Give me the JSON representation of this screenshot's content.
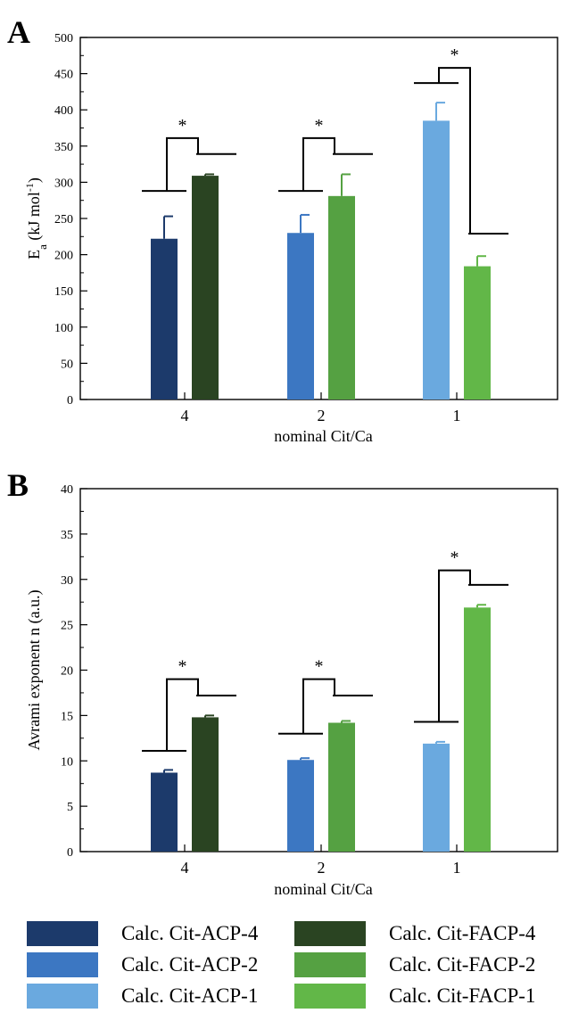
{
  "panels": [
    {
      "letter": "A",
      "ylabel": "E",
      "ylabel_sub": "a",
      "ylabel_rest": " (kJ mol",
      "ylabel_sup": "-1",
      "ylabel_end": ")",
      "xlabel": "nominal Cit/Ca"
    },
    {
      "letter": "B",
      "ylabel": "Avrami exponent n  (a.u.)",
      "xlabel": "nominal Cit/Ca"
    }
  ],
  "legend": [
    {
      "label": "Calc. Cit-ACP-4",
      "color": "#1c3a6b"
    },
    {
      "label": "Calc. Cit-FACP-4",
      "color": "#2a4422"
    },
    {
      "label": "Calc. Cit-ACP-2",
      "color": "#3c77c2"
    },
    {
      "label": "Calc. Cit-FACP-2",
      "color": "#55a142"
    },
    {
      "label": "Calc. Cit-ACP-1",
      "color": "#6aa9df"
    },
    {
      "label": "Calc. Cit-FACP-1",
      "color": "#62b748"
    }
  ],
  "chart_data": [
    {
      "type": "bar",
      "categories": [
        "4",
        "2",
        "1"
      ],
      "xlabel": "nominal Cit/Ca",
      "ylabel": "Ea (kJ mol-1)",
      "ylim": [
        0,
        500
      ],
      "yticks": [
        0,
        50,
        100,
        150,
        200,
        250,
        300,
        350,
        400,
        450,
        500
      ],
      "series": [
        {
          "name": "Calc. Cit-ACP",
          "colors": [
            "#1c3a6b",
            "#3c77c2",
            "#6aa9df"
          ],
          "values": [
            222,
            230,
            385
          ],
          "errors": [
            31,
            25,
            25
          ]
        },
        {
          "name": "Calc. Cit-FACP",
          "colors": [
            "#2a4422",
            "#55a142",
            "#62b748"
          ],
          "values": [
            309,
            281,
            184
          ],
          "errors": [
            2,
            30,
            14
          ]
        }
      ],
      "significance": [
        {
          "category": "4",
          "label": "*",
          "left_y": 288,
          "right_y": 339,
          "top_y": 361
        },
        {
          "category": "2",
          "label": "*",
          "left_y": 288,
          "right_y": 339,
          "top_y": 361
        },
        {
          "category": "1",
          "label": "*",
          "left_y": 437,
          "right_y": 229,
          "top_y": 458
        }
      ]
    },
    {
      "type": "bar",
      "categories": [
        "4",
        "2",
        "1"
      ],
      "xlabel": "nominal Cit/Ca",
      "ylabel": "Avrami exponent n  (a.u.)",
      "ylim": [
        0,
        40
      ],
      "yticks": [
        0,
        5,
        10,
        15,
        20,
        25,
        30,
        35,
        40
      ],
      "series": [
        {
          "name": "Calc. Cit-ACP",
          "colors": [
            "#1c3a6b",
            "#3c77c2",
            "#6aa9df"
          ],
          "values": [
            8.7,
            10.1,
            11.9
          ],
          "errors": [
            0.3,
            0.2,
            0.2
          ]
        },
        {
          "name": "Calc. Cit-FACP",
          "colors": [
            "#2a4422",
            "#55a142",
            "#62b748"
          ],
          "values": [
            14.8,
            14.2,
            26.9
          ],
          "errors": [
            0.2,
            0.2,
            0.3
          ]
        }
      ],
      "significance": [
        {
          "category": "4",
          "label": "*",
          "left_y": 11.1,
          "right_y": 17.2,
          "top_y": 19.0
        },
        {
          "category": "2",
          "label": "*",
          "left_y": 13.0,
          "right_y": 17.2,
          "top_y": 19.0
        },
        {
          "category": "1",
          "label": "*",
          "left_y": 14.3,
          "right_y": 29.4,
          "top_y": 31.0
        }
      ]
    }
  ]
}
